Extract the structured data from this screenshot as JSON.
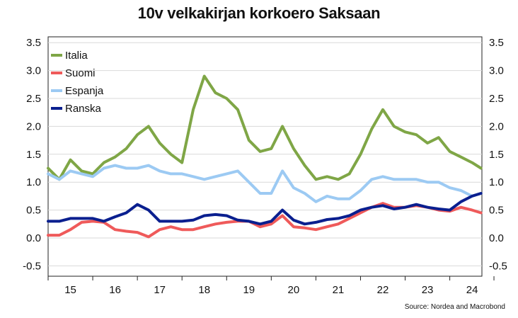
{
  "title": "10v velkakirjan korkoero Saksaan",
  "source": "Source: Nordea and Macrobond",
  "chart_data": {
    "type": "line",
    "title": "10v velkakirjan korkoero Saksaan",
    "xlabel": "",
    "ylabel": "",
    "x_tick_labels": [
      "15",
      "16",
      "17",
      "18",
      "19",
      "20",
      "21",
      "22",
      "23",
      "24"
    ],
    "x_range": [
      2015.0,
      2024.72
    ],
    "y_ticks": [
      "3.5",
      "3.0",
      "2.5",
      "2.0",
      "1.5",
      "1.0",
      "0.5",
      "0.0",
      "-0.5"
    ],
    "ylim": [
      -0.6,
      3.6
    ],
    "grid": "horizontal",
    "legend_position": "top-left",
    "x": [
      2015.0,
      2015.25,
      2015.5,
      2015.75,
      2016.0,
      2016.25,
      2016.5,
      2016.75,
      2017.0,
      2017.25,
      2017.5,
      2017.75,
      2018.0,
      2018.25,
      2018.5,
      2018.75,
      2019.0,
      2019.25,
      2019.5,
      2019.75,
      2020.0,
      2020.25,
      2020.5,
      2020.75,
      2021.0,
      2021.25,
      2021.5,
      2021.75,
      2022.0,
      2022.25,
      2022.5,
      2022.75,
      2023.0,
      2023.25,
      2023.5,
      2023.75,
      2024.0,
      2024.25,
      2024.5,
      2024.7
    ],
    "series": [
      {
        "name": "Italia",
        "color": "#7fa646",
        "values": [
          1.25,
          1.05,
          1.4,
          1.2,
          1.15,
          1.35,
          1.45,
          1.6,
          1.85,
          2.0,
          1.7,
          1.5,
          1.35,
          2.3,
          2.9,
          2.6,
          2.5,
          2.3,
          1.75,
          1.55,
          1.6,
          2.0,
          1.6,
          1.3,
          1.05,
          1.1,
          1.05,
          1.15,
          1.5,
          1.95,
          2.3,
          2.0,
          1.9,
          1.85,
          1.7,
          1.8,
          1.55,
          1.45,
          1.35,
          1.25
        ]
      },
      {
        "name": "Suomi",
        "color": "#ef5a5a",
        "values": [
          0.05,
          0.05,
          0.15,
          0.28,
          0.3,
          0.28,
          0.15,
          0.12,
          0.1,
          0.02,
          0.15,
          0.2,
          0.15,
          0.15,
          0.2,
          0.25,
          0.28,
          0.3,
          0.3,
          0.2,
          0.25,
          0.4,
          0.2,
          0.18,
          0.15,
          0.2,
          0.25,
          0.35,
          0.45,
          0.55,
          0.62,
          0.55,
          0.55,
          0.58,
          0.55,
          0.5,
          0.48,
          0.55,
          0.5,
          0.45
        ]
      },
      {
        "name": "Espanja",
        "color": "#9ccaf3",
        "values": [
          1.15,
          1.05,
          1.2,
          1.15,
          1.1,
          1.25,
          1.3,
          1.25,
          1.25,
          1.3,
          1.2,
          1.15,
          1.15,
          1.1,
          1.05,
          1.1,
          1.15,
          1.2,
          1.0,
          0.8,
          0.8,
          1.2,
          0.9,
          0.8,
          0.65,
          0.75,
          0.7,
          0.7,
          0.85,
          1.05,
          1.1,
          1.05,
          1.05,
          1.05,
          1.0,
          1.0,
          0.9,
          0.85,
          0.75,
          0.8
        ]
      },
      {
        "name": "Ranska",
        "color": "#0a1f8f",
        "values": [
          0.3,
          0.3,
          0.35,
          0.35,
          0.35,
          0.3,
          0.38,
          0.45,
          0.6,
          0.5,
          0.3,
          0.3,
          0.3,
          0.32,
          0.4,
          0.42,
          0.4,
          0.32,
          0.3,
          0.25,
          0.3,
          0.5,
          0.32,
          0.25,
          0.28,
          0.33,
          0.35,
          0.4,
          0.5,
          0.55,
          0.58,
          0.52,
          0.55,
          0.6,
          0.55,
          0.52,
          0.5,
          0.65,
          0.75,
          0.8
        ]
      }
    ]
  }
}
